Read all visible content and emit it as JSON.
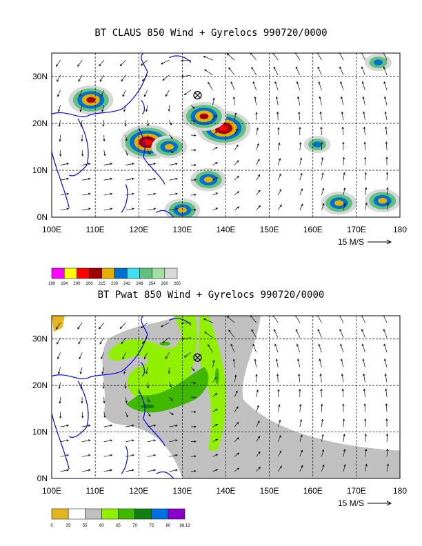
{
  "chart_data": [
    {
      "type": "map",
      "title": "BT CLAUS 850 Wind + Gyrelocs 990720/0000",
      "variable": "CLAUS brightness temperature",
      "x_ticks": [
        "100E",
        "110E",
        "120E",
        "130E",
        "140E",
        "150E",
        "160E",
        "170E",
        "180"
      ],
      "y_ticks": [
        "0N",
        "10N",
        "20N",
        "30N"
      ],
      "xlim": [
        100,
        180
      ],
      "ylim": [
        0,
        35
      ],
      "grid": true,
      "vector_reference": "15 M/S",
      "gyre_location": {
        "lon": 133.5,
        "lat": 26
      },
      "colorbar": {
        "labels": [
          "190",
          "194",
          "200",
          "206",
          "215",
          "230",
          "242",
          "248",
          "254",
          "260",
          "265"
        ],
        "colors": [
          "#ff00ff",
          "#ffff00",
          "#ff0000",
          "#a00000",
          "#e6b000",
          "#0070d0",
          "#40e0f0",
          "#60c080",
          "#a0e0a0",
          "#d8d8d8"
        ]
      },
      "bt_features": [
        {
          "lon": 109,
          "lat": 25,
          "level": 4
        },
        {
          "lon": 122,
          "lat": 16,
          "level": 5
        },
        {
          "lon": 127,
          "lat": 15,
          "level": 3
        },
        {
          "lon": 139.5,
          "lat": 19,
          "level": 5
        },
        {
          "lon": 135,
          "lat": 21.5,
          "level": 4
        },
        {
          "lon": 136,
          "lat": 8,
          "level": 3
        },
        {
          "lon": 130,
          "lat": 1.5,
          "level": 3
        },
        {
          "lon": 161,
          "lat": 15.5,
          "level": 2
        },
        {
          "lon": 166,
          "lat": 3,
          "level": 3
        },
        {
          "lon": 176,
          "lat": 3.5,
          "level": 3
        },
        {
          "lon": 175,
          "lat": 33,
          "level": 2
        }
      ]
    },
    {
      "type": "map",
      "title": "BT Pwat 850 Wind + Gyrelocs 990720/0000",
      "variable": "Precipitable water",
      "x_ticks": [
        "100E",
        "110E",
        "120E",
        "130E",
        "140E",
        "150E",
        "160E",
        "170E",
        "180"
      ],
      "y_ticks": [
        "0N",
        "10N",
        "20N",
        "30N"
      ],
      "xlim": [
        100,
        180
      ],
      "ylim": [
        0,
        35
      ],
      "grid": true,
      "vector_reference": "15 M/S",
      "gyre_location": {
        "lon": 133.5,
        "lat": 26
      },
      "colorbar": {
        "labels": [
          "0",
          "35",
          "55",
          "60",
          "65",
          "70",
          "75",
          "80",
          "88.13"
        ],
        "colors": [
          "#e6b41e",
          "#ffffff",
          "#c0c0c0",
          "#90f000",
          "#40b800",
          "#108010",
          "#0070e0",
          "#8800c8"
        ]
      }
    }
  ]
}
